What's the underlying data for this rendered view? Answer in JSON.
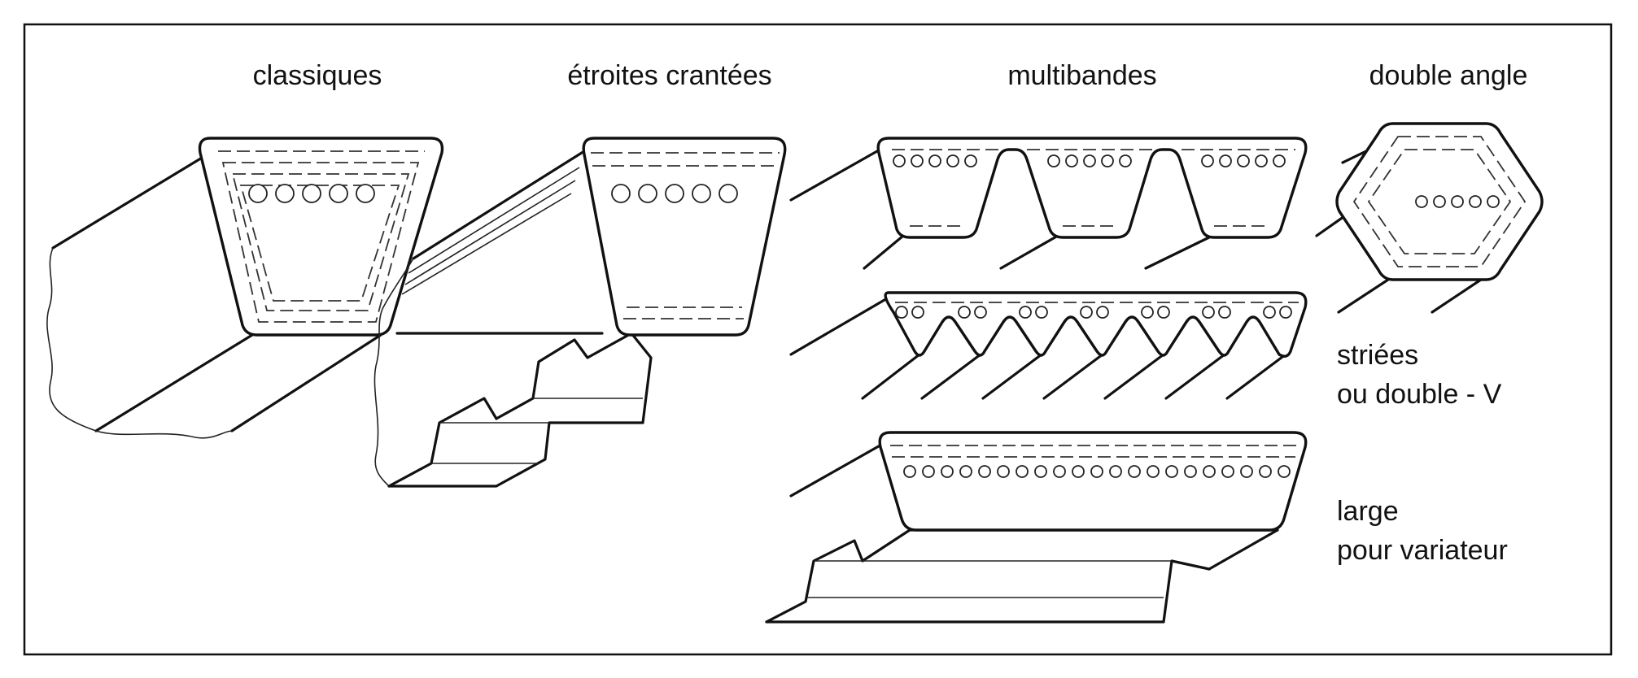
{
  "labels": {
    "classiques": "classiques",
    "etroites": "étroites crantées",
    "multibandes": "multibandes",
    "double_angle": "double angle",
    "striees_line1": "striées",
    "striees_line2": "ou double - V",
    "large_line1": "large",
    "large_line2": "pour variateur"
  }
}
